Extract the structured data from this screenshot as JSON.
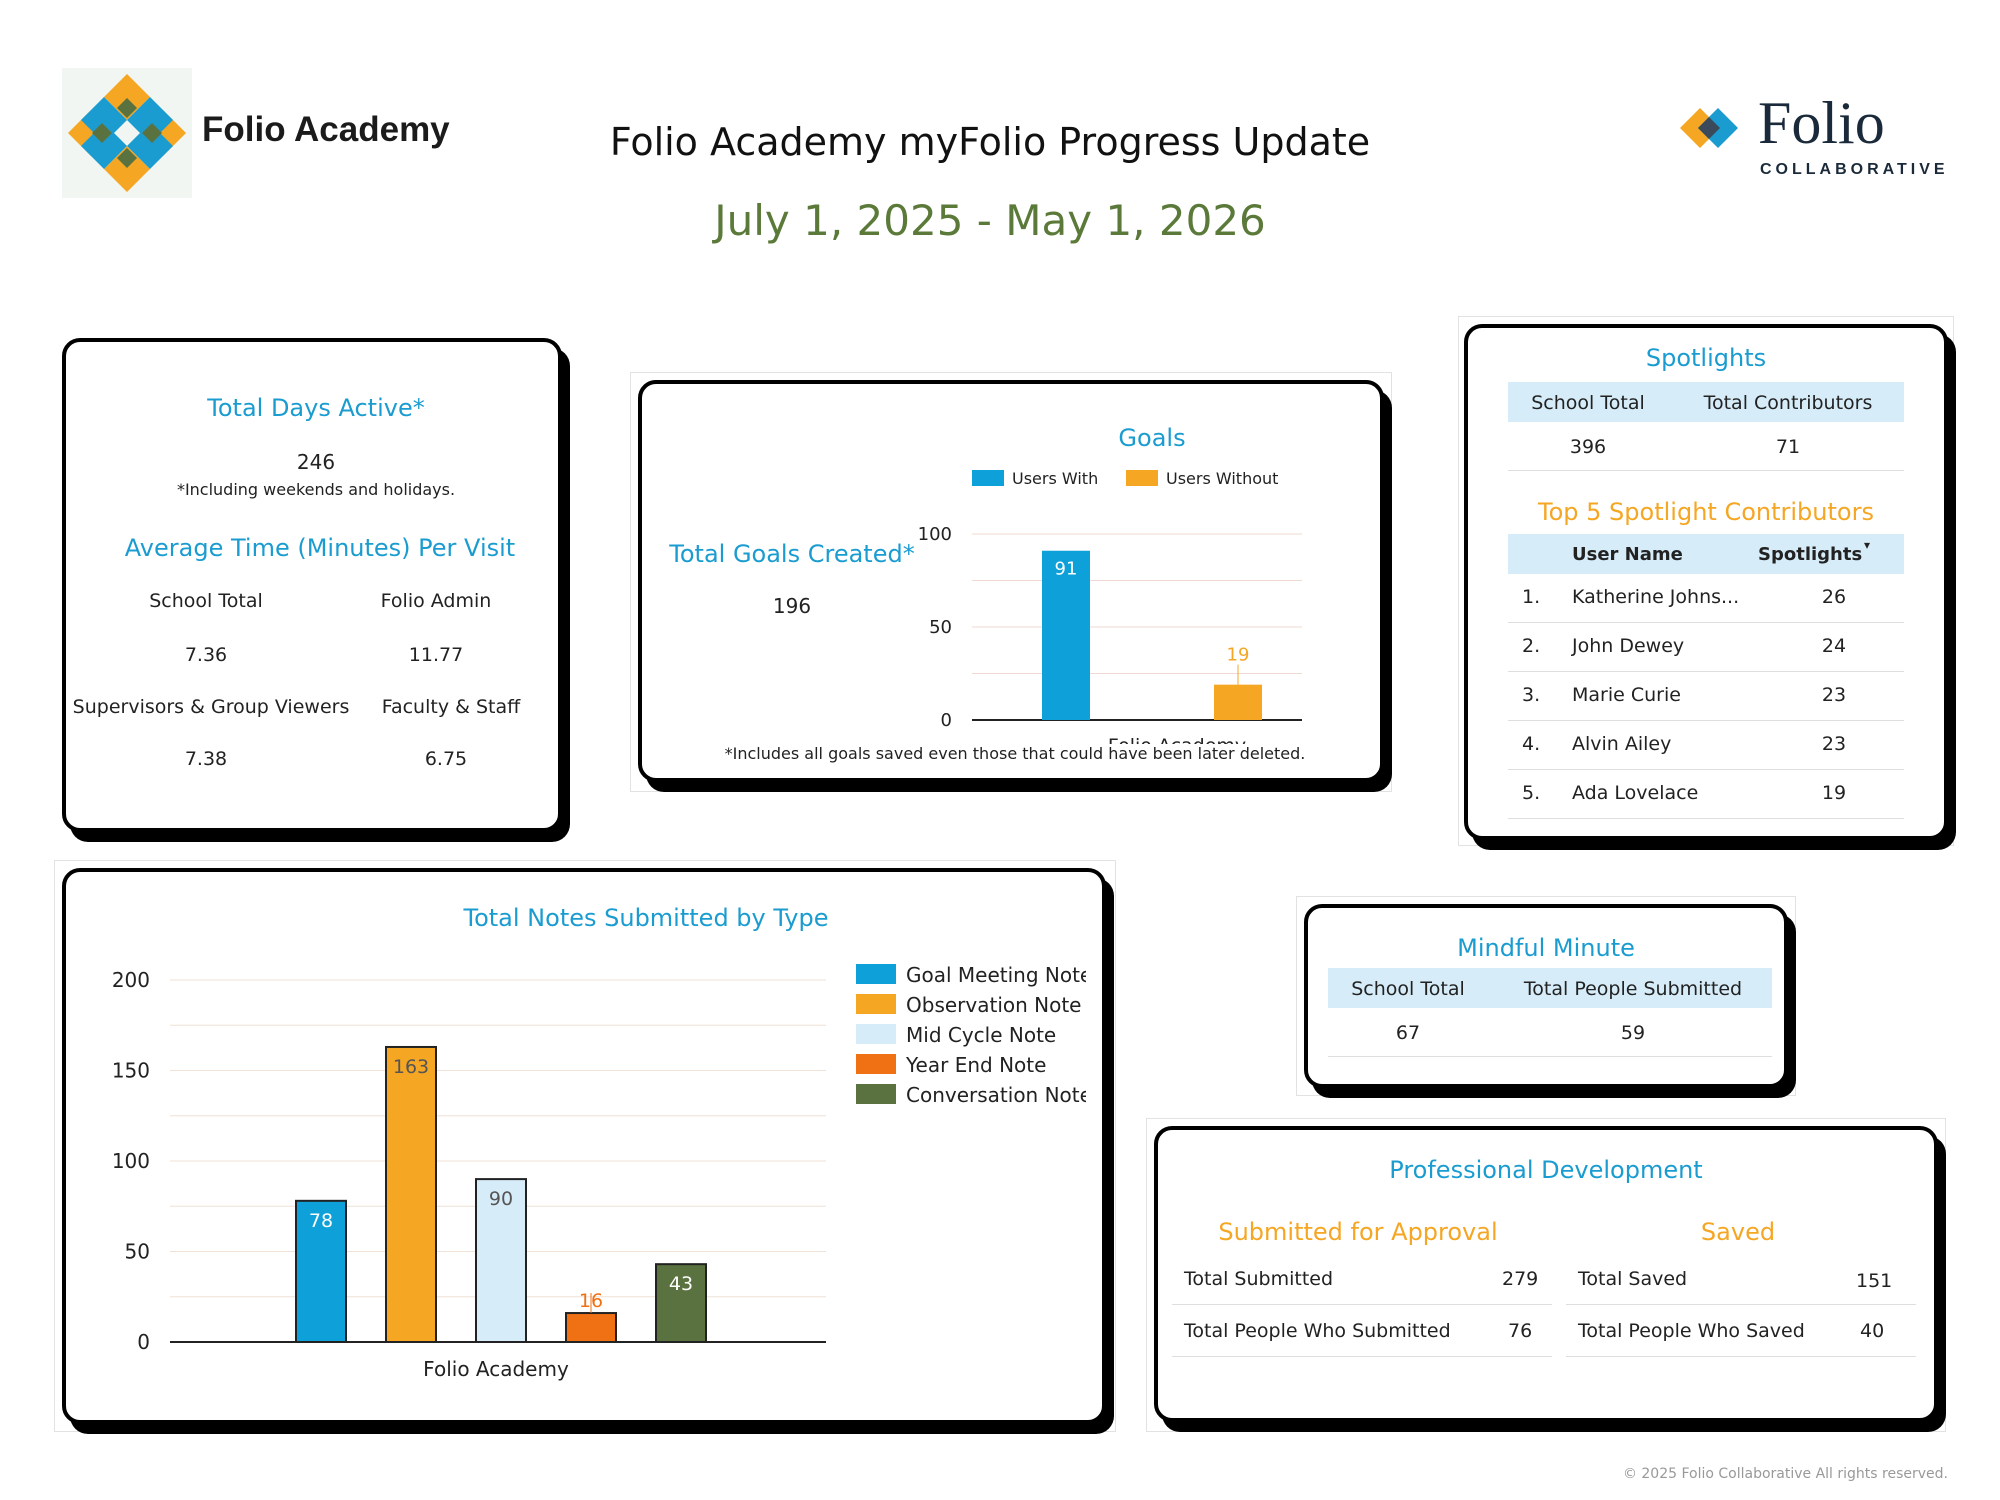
{
  "header": {
    "school_logo_text": "Folio Academy",
    "title": "Folio Academy myFolio Progress Update",
    "date_range": "July 1, 2025 - May 1, 2026",
    "brand_logo_main": "Folio",
    "brand_logo_sub": "COLLABORATIVE"
  },
  "days_card": {
    "title": "Total Days Active*",
    "value": "246",
    "note": "*Including weekends and holidays.",
    "avg_title": "Average Time (Minutes) Per Visit",
    "items": [
      {
        "label": "School Total",
        "value": "7.36"
      },
      {
        "label": "Folio Admin",
        "value": "11.77"
      },
      {
        "label": "Supervisors & Group Viewers",
        "value": "7.38"
      },
      {
        "label": "Faculty & Staff",
        "value": "6.75"
      }
    ]
  },
  "goals_card": {
    "title": "Goals",
    "created_label": "Total Goals Created*",
    "created_value": "196",
    "footnote": "*Includes all goals saved even those that could have been later deleted."
  },
  "spotlights_card": {
    "title": "Spotlights",
    "col_school_total": "School Total",
    "col_total_contributors": "Total Contributors",
    "school_total": "396",
    "total_contributors": "71",
    "top_title": "Top 5 Spotlight Contributors",
    "col_user_name": "User Name",
    "col_spotlights": "Spotlights",
    "sort_icon": "▾",
    "contributors": [
      {
        "rank": "1.",
        "name": "Katherine Johns...",
        "count": "26"
      },
      {
        "rank": "2.",
        "name": "John Dewey",
        "count": "24"
      },
      {
        "rank": "3.",
        "name": "Marie Curie",
        "count": "23"
      },
      {
        "rank": "4.",
        "name": "Alvin Ailey",
        "count": "23"
      },
      {
        "rank": "5.",
        "name": "Ada Lovelace",
        "count": "19"
      }
    ]
  },
  "mindful_card": {
    "title": "Mindful Minute",
    "col_school_total": "School Total",
    "col_people": "Total People Submitted",
    "school_total": "67",
    "people": "59"
  },
  "pd_card": {
    "title": "Professional Development",
    "submitted_title": "Submitted for Approval",
    "saved_title": "Saved",
    "submitted_rows": [
      {
        "label": "Total Submitted",
        "value": "279"
      },
      {
        "label": "Total People Who Submitted",
        "value": "76"
      }
    ],
    "saved_rows": [
      {
        "label": "Total Saved",
        "value": "151"
      },
      {
        "label": "Total People Who Saved",
        "value": "40"
      }
    ]
  },
  "notes_card": {
    "title": "Total Notes Submitted by Type"
  },
  "footer": {
    "copyright": "© 2025 Folio Collaborative All rights reserved."
  },
  "colors": {
    "teal": "#1a9cd0",
    "orange": "#f5a623",
    "light_blue": "#d6ecf8",
    "dark_orange": "#f07014",
    "green": "#5a7140",
    "date_green": "#5b7a3a"
  },
  "chart_data": [
    {
      "type": "bar",
      "title": "Goals",
      "categories": [
        "Folio Academy"
      ],
      "series": [
        {
          "name": "Users With",
          "values": [
            91
          ],
          "color": "#0ea0d8"
        },
        {
          "name": "Users Without",
          "values": [
            19
          ],
          "color": "#f5a623"
        }
      ],
      "ylim": [
        0,
        100
      ],
      "yticks": [
        0,
        50,
        100
      ],
      "legend": "top"
    },
    {
      "type": "bar",
      "title": "Total Notes Submitted by Type",
      "categories": [
        "Folio Academy"
      ],
      "series": [
        {
          "name": "Goal Meeting Note",
          "values": [
            78
          ],
          "color": "#0ea0d8",
          "label_color": "#ffffff"
        },
        {
          "name": "Observation Note",
          "values": [
            163
          ],
          "color": "#f5a623",
          "label_color": "#555555"
        },
        {
          "name": "Mid Cycle Note",
          "values": [
            90
          ],
          "color": "#d6ecf8",
          "label_color": "#555555"
        },
        {
          "name": "Year End Note",
          "values": [
            16
          ],
          "color": "#f07014",
          "label_color": "#f07014"
        },
        {
          "name": "Conversation Note",
          "values": [
            43
          ],
          "color": "#5a7140",
          "label_color": "#ffffff"
        }
      ],
      "ylim": [
        0,
        200
      ],
      "yticks": [
        0,
        50,
        100,
        150,
        200
      ],
      "legend": "right"
    }
  ]
}
